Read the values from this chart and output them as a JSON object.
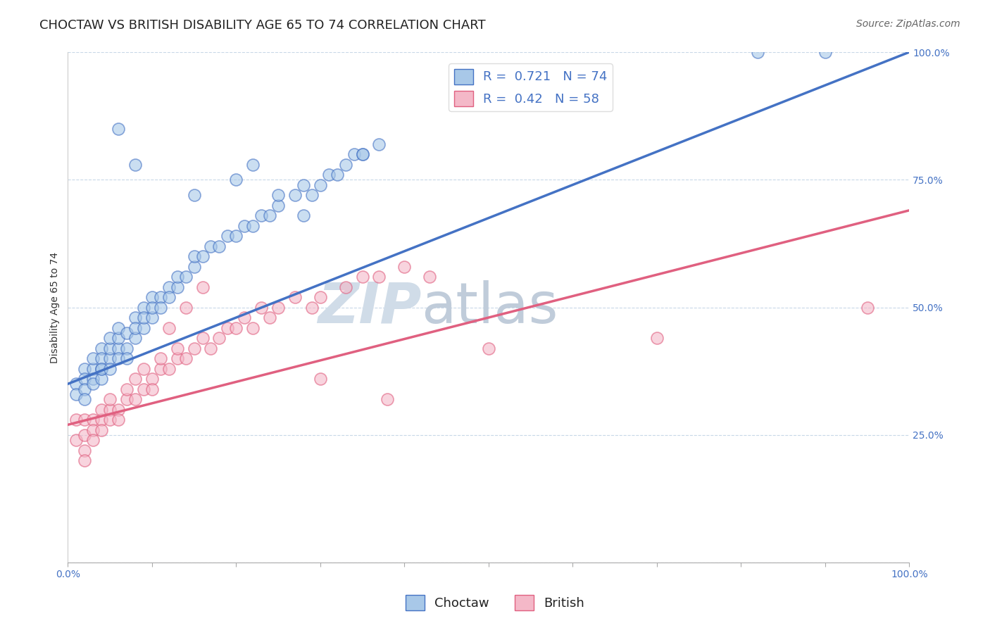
{
  "title": "CHOCTAW VS BRITISH DISABILITY AGE 65 TO 74 CORRELATION CHART",
  "source": "Source: ZipAtlas.com",
  "ylabel": "Disability Age 65 to 74",
  "xlim": [
    0.0,
    1.0
  ],
  "ylim": [
    0.0,
    1.0
  ],
  "choctaw_R": 0.721,
  "choctaw_N": 74,
  "british_R": 0.42,
  "british_N": 58,
  "choctaw_color": "#a8c8e8",
  "british_color": "#f4b8c8",
  "choctaw_line_color": "#4472c4",
  "british_line_color": "#e06080",
  "legend_label_choctaw": "Choctaw",
  "legend_label_british": "British",
  "watermark_text": "ZIP",
  "watermark_text2": "atlas",
  "background_color": "#ffffff",
  "grid_color": "#c8d8e8",
  "title_fontsize": 13,
  "axis_label_fontsize": 10,
  "tick_fontsize": 10,
  "legend_fontsize": 13,
  "source_fontsize": 10,
  "watermark_color": "#d0dce8",
  "choctaw_regression_intercept": 0.35,
  "choctaw_regression_slope": 0.65,
  "british_regression_intercept": 0.27,
  "british_regression_slope": 0.42,
  "choctaw_x": [
    0.01,
    0.01,
    0.02,
    0.02,
    0.02,
    0.02,
    0.03,
    0.03,
    0.03,
    0.03,
    0.04,
    0.04,
    0.04,
    0.04,
    0.04,
    0.05,
    0.05,
    0.05,
    0.05,
    0.06,
    0.06,
    0.06,
    0.06,
    0.07,
    0.07,
    0.07,
    0.08,
    0.08,
    0.08,
    0.09,
    0.09,
    0.09,
    0.1,
    0.1,
    0.1,
    0.11,
    0.11,
    0.12,
    0.12,
    0.13,
    0.13,
    0.14,
    0.15,
    0.15,
    0.16,
    0.17,
    0.18,
    0.19,
    0.2,
    0.21,
    0.22,
    0.23,
    0.24,
    0.25,
    0.27,
    0.28,
    0.29,
    0.3,
    0.31,
    0.32,
    0.33,
    0.34,
    0.35,
    0.37,
    0.15,
    0.2,
    0.22,
    0.25,
    0.28,
    0.35,
    0.82,
    0.9,
    0.06,
    0.08
  ],
  "choctaw_y": [
    0.35,
    0.33,
    0.38,
    0.36,
    0.34,
    0.32,
    0.38,
    0.36,
    0.4,
    0.35,
    0.38,
    0.36,
    0.42,
    0.4,
    0.38,
    0.4,
    0.42,
    0.38,
    0.44,
    0.42,
    0.44,
    0.4,
    0.46,
    0.42,
    0.45,
    0.4,
    0.44,
    0.48,
    0.46,
    0.46,
    0.5,
    0.48,
    0.48,
    0.52,
    0.5,
    0.52,
    0.5,
    0.54,
    0.52,
    0.54,
    0.56,
    0.56,
    0.58,
    0.6,
    0.6,
    0.62,
    0.62,
    0.64,
    0.64,
    0.66,
    0.66,
    0.68,
    0.68,
    0.7,
    0.72,
    0.74,
    0.72,
    0.74,
    0.76,
    0.76,
    0.78,
    0.8,
    0.8,
    0.82,
    0.72,
    0.75,
    0.78,
    0.72,
    0.68,
    0.8,
    1.0,
    1.0,
    0.85,
    0.78
  ],
  "british_x": [
    0.01,
    0.01,
    0.02,
    0.02,
    0.02,
    0.02,
    0.03,
    0.03,
    0.03,
    0.04,
    0.04,
    0.04,
    0.05,
    0.05,
    0.05,
    0.06,
    0.06,
    0.07,
    0.07,
    0.08,
    0.08,
    0.09,
    0.09,
    0.1,
    0.1,
    0.11,
    0.11,
    0.12,
    0.13,
    0.13,
    0.14,
    0.15,
    0.16,
    0.17,
    0.18,
    0.19,
    0.2,
    0.21,
    0.22,
    0.23,
    0.24,
    0.25,
    0.27,
    0.29,
    0.3,
    0.33,
    0.35,
    0.37,
    0.4,
    0.43,
    0.3,
    0.12,
    0.14,
    0.16,
    0.38,
    0.5,
    0.7,
    0.95
  ],
  "british_y": [
    0.28,
    0.24,
    0.28,
    0.25,
    0.22,
    0.2,
    0.28,
    0.26,
    0.24,
    0.28,
    0.26,
    0.3,
    0.3,
    0.28,
    0.32,
    0.3,
    0.28,
    0.32,
    0.34,
    0.32,
    0.36,
    0.34,
    0.38,
    0.36,
    0.34,
    0.38,
    0.4,
    0.38,
    0.4,
    0.42,
    0.4,
    0.42,
    0.44,
    0.42,
    0.44,
    0.46,
    0.46,
    0.48,
    0.46,
    0.5,
    0.48,
    0.5,
    0.52,
    0.5,
    0.52,
    0.54,
    0.56,
    0.56,
    0.58,
    0.56,
    0.36,
    0.46,
    0.5,
    0.54,
    0.32,
    0.42,
    0.44,
    0.5
  ]
}
